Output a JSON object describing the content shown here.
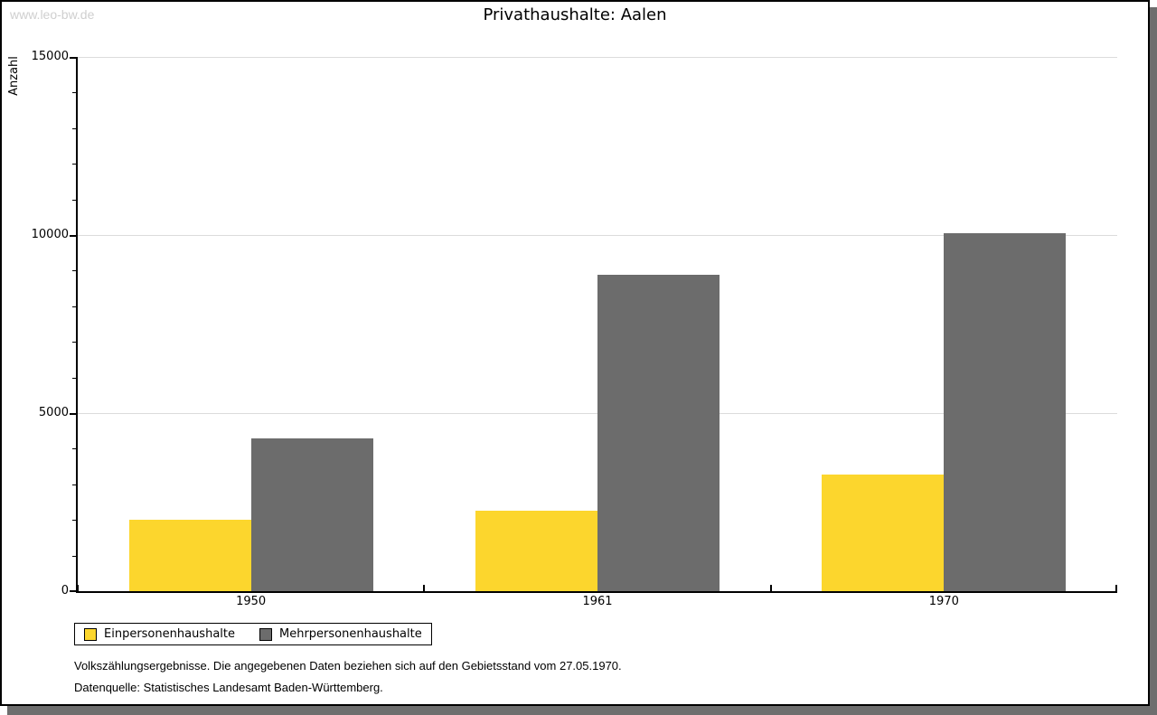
{
  "watermark": "www.leo-bw.de",
  "title": "Privathaushalte: Aalen",
  "chart_data": {
    "type": "bar",
    "title": "Privathaushalte: Aalen",
    "categories": [
      "1950",
      "1961",
      "1970"
    ],
    "series": [
      {
        "name": "Einpersonenhaushalte",
        "color": "#fcd62d",
        "values": [
          2000,
          2250,
          3270
        ]
      },
      {
        "name": "Mehrpersonenhaushalte",
        "color": "#6c6c6c",
        "values": [
          4290,
          8880,
          10050
        ]
      }
    ],
    "xlabel": "",
    "ylabel": "Anzahl",
    "ylim": [
      0,
      15000
    ],
    "ytick_step": 5000,
    "yminor_step": 1000,
    "ytick_labels": [
      "0",
      "5000",
      "10000",
      "15000"
    ],
    "grid": true,
    "legend_position": "bottom-left"
  },
  "footnotes": {
    "line1": "Volkszählungsergebnisse. Die angegebenen Daten beziehen sich auf den Gebietsstand vom 27.05.1970.",
    "line2": "Datenquelle: Statistisches Landesamt Baden-Württemberg."
  },
  "colors": {
    "series_1": "#fcd62d",
    "series_2": "#6c6c6c",
    "gridline": "#dcdcdc",
    "axis": "#000000",
    "shadow": "#6e6e6e",
    "watermark": "#cfcfcf",
    "background": "#ffffff"
  }
}
